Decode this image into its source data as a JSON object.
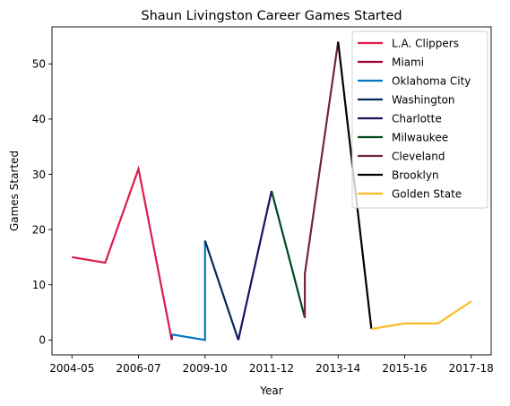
{
  "chart_data": {
    "type": "line",
    "title": "Shaun Livingston Career Games Started",
    "xlabel": "Year",
    "ylabel": "Games Started",
    "x_tick_labels": [
      "2004-05",
      "2006-07",
      "2009-10",
      "2011-12",
      "2013-14",
      "2015-16",
      "2017-18"
    ],
    "x_tick_positions": [
      0,
      2,
      4,
      6,
      8,
      10,
      12
    ],
    "xlim": [
      -0.6,
      12.6
    ],
    "ylim": [
      -2.7,
      56.7
    ],
    "y_ticks": [
      0,
      10,
      20,
      30,
      40,
      50
    ],
    "grid": false,
    "legend_position": "top-right",
    "series": [
      {
        "name": "L.A. Clippers",
        "color": "#dc1d4a",
        "points": [
          [
            0,
            15
          ],
          [
            1,
            14
          ],
          [
            2,
            31
          ],
          [
            3,
            0
          ]
        ]
      },
      {
        "name": "Miami",
        "color": "#98002e",
        "points": [
          [
            3,
            0
          ],
          [
            3,
            1
          ]
        ]
      },
      {
        "name": "Oklahoma City",
        "color": "#0077c0",
        "points": [
          [
            3,
            1
          ],
          [
            4,
            0
          ],
          [
            4,
            18
          ]
        ]
      },
      {
        "name": "Washington",
        "color": "#002b5c",
        "points": [
          [
            4,
            18
          ],
          [
            5,
            0
          ]
        ]
      },
      {
        "name": "Charlotte",
        "color": "#1d1160",
        "points": [
          [
            5,
            0
          ],
          [
            6,
            27
          ]
        ]
      },
      {
        "name": "Milwaukee",
        "color": "#00471b",
        "points": [
          [
            6,
            27
          ],
          [
            7,
            4
          ]
        ]
      },
      {
        "name": "Cleveland",
        "color": "#6f263d",
        "points": [
          [
            7,
            4
          ],
          [
            7,
            12
          ],
          [
            8,
            54
          ]
        ]
      },
      {
        "name": "Brooklyn",
        "color": "#000000",
        "points": [
          [
            8,
            54
          ],
          [
            9,
            2
          ]
        ]
      },
      {
        "name": "Golden State",
        "color": "#fdb927",
        "points": [
          [
            9,
            2
          ],
          [
            10,
            3
          ],
          [
            11,
            3
          ],
          [
            12,
            7
          ]
        ]
      }
    ]
  }
}
